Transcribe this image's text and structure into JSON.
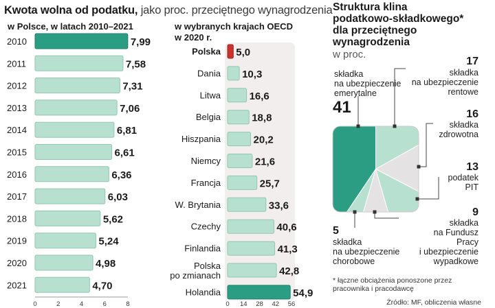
{
  "title": {
    "bold": "Kwota wolna od podatku,",
    "rest": " jako proc. przeciętnego wynagrodzenia"
  },
  "colors": {
    "accent": "#2a9d82",
    "light": "#b7e0d0",
    "red": "#c8342c",
    "grey": "#e4e2e2",
    "panel": "#f2eeee"
  },
  "chart_data": [
    {
      "type": "bar",
      "title": "w Polsce, w latach 2010–2021",
      "categories": [
        "2010",
        "2011",
        "2012",
        "2013",
        "2014",
        "2015",
        "2016",
        "2017",
        "2018",
        "2019",
        "2020",
        "2021"
      ],
      "values": [
        7.99,
        7.58,
        7.31,
        7.06,
        6.81,
        6.61,
        6.36,
        6.03,
        5.62,
        5.24,
        4.98,
        4.7
      ],
      "value_labels": [
        "7,99",
        "7,58",
        "7,31",
        "7,06",
        "6,81",
        "6,61",
        "6,36",
        "6,03",
        "5,62",
        "5,24",
        "4,98",
        "4,70"
      ],
      "ticks": [
        "0",
        "2",
        "4",
        "6",
        "8"
      ],
      "xlim": [
        0,
        8
      ]
    },
    {
      "type": "bar",
      "title": "w wybranych krajach OECD w 2020 r.",
      "title_lines": [
        "w wybranych krajach OECD",
        "w 2020 r."
      ],
      "categories": [
        "Polska",
        "Dania",
        "Litwa",
        "Belgia",
        "Hiszpania",
        "Niemcy",
        "Francja",
        "W. Brytania",
        "Czechy",
        "Finlandia",
        "Polska po zmianach",
        "Holandia"
      ],
      "category_lines": [
        [
          "Polska"
        ],
        [
          "Dania"
        ],
        [
          "Litwa"
        ],
        [
          "Belgia"
        ],
        [
          "Hiszpania"
        ],
        [
          "Niemcy"
        ],
        [
          "Francja"
        ],
        [
          "W. Brytania"
        ],
        [
          "Czechy"
        ],
        [
          "Finlandia"
        ],
        [
          "Polska",
          "po zmianach"
        ],
        [
          "Holandia"
        ]
      ],
      "values": [
        5.0,
        10.3,
        16.6,
        18.8,
        20.2,
        21.6,
        25.7,
        33.6,
        40.6,
        41.3,
        42.8,
        54.9
      ],
      "value_labels": [
        "5,0",
        "10,3",
        "16,6",
        "18,8",
        "20,2",
        "21,6",
        "25,7",
        "33,6",
        "40,6",
        "41,3",
        "42,8",
        "54,9"
      ],
      "ticks": [
        "0",
        "14",
        "28",
        "42",
        "56"
      ],
      "xlim": [
        0,
        56
      ]
    },
    {
      "type": "pie",
      "title": "Struktura klina podatkowo-składkowego* dla przeciętnego wynagrodzenia",
      "title_lines": [
        "Struktura klina",
        "podatkowo-składkowego*",
        "dla przeciętnego",
        "wynagrodzenia"
      ],
      "unit": "w proc.",
      "slices": [
        {
          "label": "składka na ubezpieczenie emerytalne",
          "lines": [
            "składka",
            "na ubezpieczenie",
            "emerytalne"
          ],
          "value": 41,
          "value_label": "41"
        },
        {
          "label": "składka na ubezpieczenie rentowe",
          "lines": [
            "składka",
            "na ubezpieczenie",
            "rentowe"
          ],
          "value": 17,
          "value_label": "17"
        },
        {
          "label": "składka zdrowotna",
          "lines": [
            "składka",
            "zdrowotna"
          ],
          "value": 16,
          "value_label": "16"
        },
        {
          "label": "podatek PIT",
          "lines": [
            "podatek",
            "PIT"
          ],
          "value": 13,
          "value_label": "13"
        },
        {
          "label": "składka na Fundusz Pracy i ubezpieczenie wypadkowe",
          "lines": [
            "składka",
            "na Fundusz",
            "Pracy",
            "i ubezpieczenie",
            "wypadkowe"
          ],
          "value": 9,
          "value_label": "9"
        },
        {
          "label": "składka na ubezpieczenie chorobowe",
          "lines": [
            "składka",
            "na ubezpieczenie",
            "chorobowe"
          ],
          "value": 5,
          "value_label": "5"
        }
      ]
    }
  ],
  "footnote": {
    "line1": "* łączne  obciążenia ponoszone przez",
    "line2": "pracownika i pracodawcę"
  },
  "source": "Źródło: MF, obliczenia własne"
}
